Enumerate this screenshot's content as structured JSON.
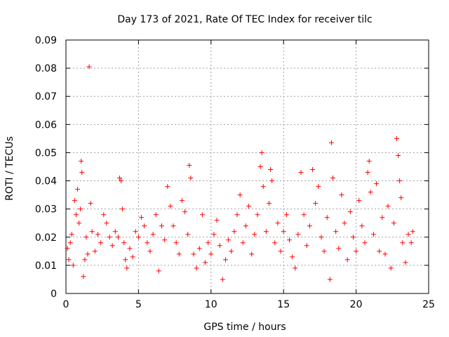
{
  "chart_data": {
    "type": "scatter",
    "title": "Day 173 of 2021, Rate Of TEC Index for receiver tilc",
    "xlabel": "GPS time / hours",
    "ylabel": "ROTI / TECUs",
    "xlim": [
      0,
      25
    ],
    "ylim": [
      0,
      0.09
    ],
    "x_ticks": [
      "0",
      "5",
      "10",
      "15",
      "20",
      "25"
    ],
    "y_ticks": [
      "0",
      "0.01",
      "0.02",
      "0.03",
      "0.04",
      "0.05",
      "0.06",
      "0.07",
      "0.08",
      "0.09"
    ],
    "grid": true,
    "marker": "+",
    "colors": {
      "points": "#ff0000",
      "grid": "#a0a0a0",
      "frame": "#000000"
    },
    "series": [
      {
        "points": [
          [
            0.1,
            0.016
          ],
          [
            0.2,
            0.012
          ],
          [
            0.3,
            0.018
          ],
          [
            0.4,
            0.021
          ],
          [
            0.5,
            0.01
          ],
          [
            0.6,
            0.033
          ],
          [
            0.7,
            0.028
          ],
          [
            0.8,
            0.037
          ],
          [
            0.9,
            0.025
          ],
          [
            1.0,
            0.03
          ],
          [
            1.05,
            0.047
          ],
          [
            1.1,
            0.043
          ],
          [
            1.2,
            0.006
          ],
          [
            1.3,
            0.012
          ],
          [
            1.4,
            0.02
          ],
          [
            1.5,
            0.014
          ],
          [
            1.6,
            0.0805
          ],
          [
            1.7,
            0.032
          ],
          [
            1.8,
            0.022
          ],
          [
            2.0,
            0.015
          ],
          [
            2.2,
            0.021
          ],
          [
            2.4,
            0.018
          ],
          [
            2.6,
            0.028
          ],
          [
            2.8,
            0.025
          ],
          [
            3.0,
            0.02
          ],
          [
            3.2,
            0.017
          ],
          [
            3.4,
            0.022
          ],
          [
            3.6,
            0.02
          ],
          [
            3.7,
            0.041
          ],
          [
            3.8,
            0.04
          ],
          [
            3.9,
            0.03
          ],
          [
            4.0,
            0.018
          ],
          [
            4.1,
            0.012
          ],
          [
            4.2,
            0.009
          ],
          [
            4.4,
            0.016
          ],
          [
            4.6,
            0.013
          ],
          [
            4.8,
            0.022
          ],
          [
            5.0,
            0.02
          ],
          [
            5.2,
            0.027
          ],
          [
            5.4,
            0.024
          ],
          [
            5.6,
            0.018
          ],
          [
            5.8,
            0.015
          ],
          [
            6.0,
            0.021
          ],
          [
            6.2,
            0.028
          ],
          [
            6.4,
            0.008
          ],
          [
            6.6,
            0.024
          ],
          [
            6.8,
            0.019
          ],
          [
            7.0,
            0.038
          ],
          [
            7.2,
            0.031
          ],
          [
            7.4,
            0.024
          ],
          [
            7.6,
            0.018
          ],
          [
            7.8,
            0.014
          ],
          [
            8.0,
            0.033
          ],
          [
            8.2,
            0.029
          ],
          [
            8.4,
            0.021
          ],
          [
            8.5,
            0.0455
          ],
          [
            8.6,
            0.041
          ],
          [
            8.8,
            0.014
          ],
          [
            9.0,
            0.009
          ],
          [
            9.2,
            0.016
          ],
          [
            9.4,
            0.028
          ],
          [
            9.6,
            0.011
          ],
          [
            9.8,
            0.018
          ],
          [
            10.0,
            0.014
          ],
          [
            10.2,
            0.021
          ],
          [
            10.4,
            0.026
          ],
          [
            10.6,
            0.017
          ],
          [
            10.8,
            0.005
          ],
          [
            11.0,
            0.012
          ],
          [
            11.2,
            0.019
          ],
          [
            11.4,
            0.015
          ],
          [
            11.6,
            0.022
          ],
          [
            11.8,
            0.028
          ],
          [
            12.0,
            0.035
          ],
          [
            12.2,
            0.018
          ],
          [
            12.4,
            0.024
          ],
          [
            12.6,
            0.031
          ],
          [
            12.8,
            0.014
          ],
          [
            13.0,
            0.021
          ],
          [
            13.2,
            0.028
          ],
          [
            13.4,
            0.045
          ],
          [
            13.5,
            0.05
          ],
          [
            13.6,
            0.038
          ],
          [
            13.8,
            0.022
          ],
          [
            14.0,
            0.032
          ],
          [
            14.1,
            0.044
          ],
          [
            14.2,
            0.04
          ],
          [
            14.4,
            0.018
          ],
          [
            14.6,
            0.025
          ],
          [
            14.8,
            0.015
          ],
          [
            15.0,
            0.022
          ],
          [
            15.2,
            0.028
          ],
          [
            15.4,
            0.019
          ],
          [
            15.6,
            0.013
          ],
          [
            15.8,
            0.009
          ],
          [
            16.0,
            0.021
          ],
          [
            16.2,
            0.043
          ],
          [
            16.4,
            0.028
          ],
          [
            16.6,
            0.017
          ],
          [
            16.8,
            0.024
          ],
          [
            17.0,
            0.044
          ],
          [
            17.2,
            0.032
          ],
          [
            17.4,
            0.038
          ],
          [
            17.6,
            0.02
          ],
          [
            17.8,
            0.015
          ],
          [
            18.0,
            0.027
          ],
          [
            18.2,
            0.005
          ],
          [
            18.3,
            0.0535
          ],
          [
            18.4,
            0.041
          ],
          [
            18.6,
            0.022
          ],
          [
            18.8,
            0.016
          ],
          [
            19.0,
            0.035
          ],
          [
            19.2,
            0.025
          ],
          [
            19.4,
            0.012
          ],
          [
            19.6,
            0.029
          ],
          [
            19.8,
            0.02
          ],
          [
            20.0,
            0.015
          ],
          [
            20.2,
            0.033
          ],
          [
            20.4,
            0.024
          ],
          [
            20.6,
            0.018
          ],
          [
            20.8,
            0.043
          ],
          [
            20.9,
            0.047
          ],
          [
            21.0,
            0.036
          ],
          [
            21.2,
            0.021
          ],
          [
            21.4,
            0.039
          ],
          [
            21.6,
            0.015
          ],
          [
            21.8,
            0.027
          ],
          [
            22.0,
            0.014
          ],
          [
            22.2,
            0.031
          ],
          [
            22.4,
            0.009
          ],
          [
            22.6,
            0.025
          ],
          [
            22.8,
            0.055
          ],
          [
            22.9,
            0.049
          ],
          [
            23.0,
            0.04
          ],
          [
            23.1,
            0.034
          ],
          [
            23.2,
            0.018
          ],
          [
            23.4,
            0.011
          ],
          [
            23.6,
            0.021
          ],
          [
            23.8,
            0.018
          ],
          [
            23.9,
            0.022
          ]
        ]
      }
    ]
  }
}
